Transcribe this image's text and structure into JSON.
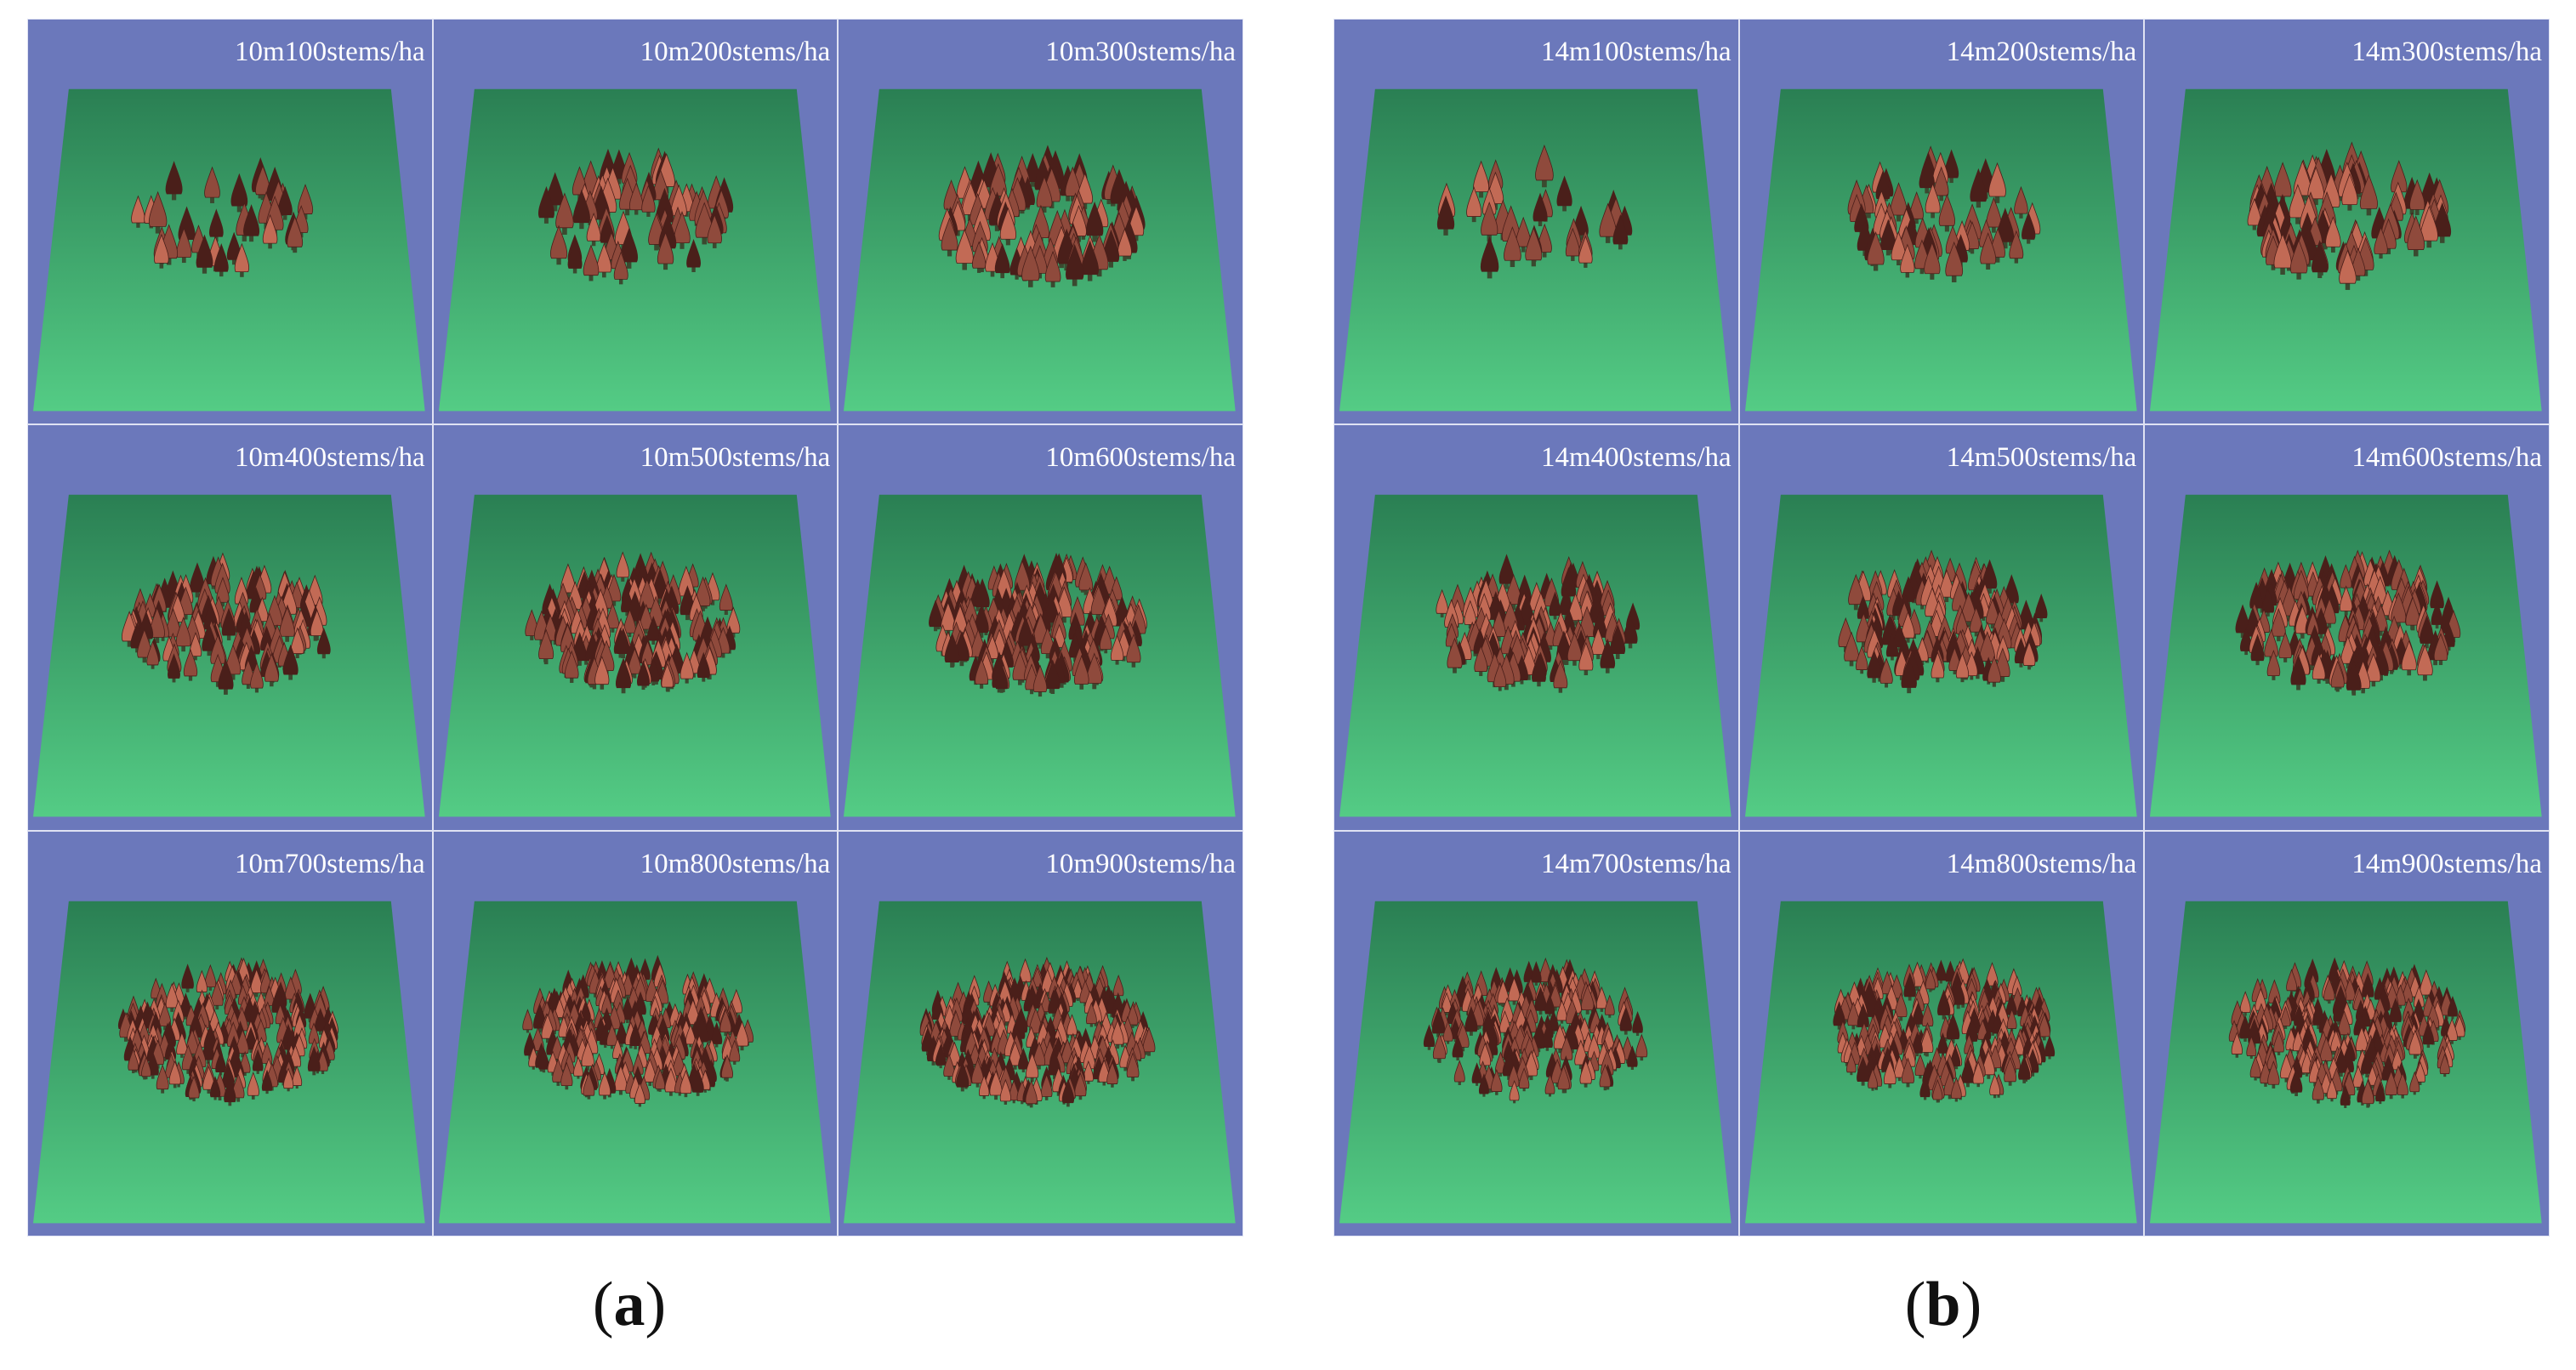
{
  "colors": {
    "background": "#6b78bb",
    "ground_far": "#2a7f53",
    "ground_near": "#54cc85",
    "tree_dark": "#4a1f1a",
    "tree_mid": "#8f4a3c",
    "tree_light": "#c26a55",
    "trunk": "#3a4a30"
  },
  "panels": [
    {
      "caption_letter": "a",
      "cells": [
        {
          "label": "10m100stems/ha",
          "spacing_m": 10,
          "density_stems_per_ha": 100
        },
        {
          "label": "10m200stems/ha",
          "spacing_m": 10,
          "density_stems_per_ha": 200
        },
        {
          "label": "10m300stems/ha",
          "spacing_m": 10,
          "density_stems_per_ha": 300
        },
        {
          "label": "10m400stems/ha",
          "spacing_m": 10,
          "density_stems_per_ha": 400
        },
        {
          "label": "10m500stems/ha",
          "spacing_m": 10,
          "density_stems_per_ha": 500
        },
        {
          "label": "10m600stems/ha",
          "spacing_m": 10,
          "density_stems_per_ha": 600
        },
        {
          "label": "10m700stems/ha",
          "spacing_m": 10,
          "density_stems_per_ha": 700
        },
        {
          "label": "10m800stems/ha",
          "spacing_m": 10,
          "density_stems_per_ha": 800
        },
        {
          "label": "10m900stems/ha",
          "spacing_m": 10,
          "density_stems_per_ha": 900
        }
      ]
    },
    {
      "caption_letter": "b",
      "cells": [
        {
          "label": "14m100stems/ha",
          "spacing_m": 14,
          "density_stems_per_ha": 100
        },
        {
          "label": "14m200stems/ha",
          "spacing_m": 14,
          "density_stems_per_ha": 200
        },
        {
          "label": "14m300stems/ha",
          "spacing_m": 14,
          "density_stems_per_ha": 300
        },
        {
          "label": "14m400stems/ha",
          "spacing_m": 14,
          "density_stems_per_ha": 400
        },
        {
          "label": "14m500stems/ha",
          "spacing_m": 14,
          "density_stems_per_ha": 500
        },
        {
          "label": "14m600stems/ha",
          "spacing_m": 14,
          "density_stems_per_ha": 600
        },
        {
          "label": "14m700stems/ha",
          "spacing_m": 14,
          "density_stems_per_ha": 700
        },
        {
          "label": "14m800stems/ha",
          "spacing_m": 14,
          "density_stems_per_ha": 800
        },
        {
          "label": "14m900stems/ha",
          "spacing_m": 14,
          "density_stems_per_ha": 900
        }
      ]
    }
  ]
}
